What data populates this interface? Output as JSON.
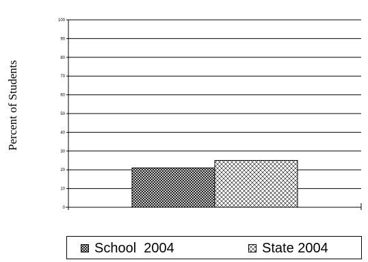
{
  "chart_data": {
    "type": "bar",
    "title": "",
    "xlabel": "",
    "ylabel": "Percent of Students",
    "ylim": [
      0,
      100
    ],
    "y_ticks": [
      "0",
      "10",
      "20",
      "30",
      "40",
      "50",
      "60",
      "70",
      "80",
      "90",
      "100"
    ],
    "grid": true,
    "legend_position": "bottom",
    "series": [
      {
        "name": "School  2004",
        "values": [
          21
        ],
        "pattern": "crosshatch-dense",
        "color": "#000000"
      },
      {
        "name": "State 2004",
        "values": [
          25
        ],
        "pattern": "crosshatch-sparse",
        "color": "#000000"
      }
    ]
  },
  "colors": {
    "background": "#ffffff",
    "gridline": "#000000",
    "bar_fill_base": "#ffffff"
  }
}
